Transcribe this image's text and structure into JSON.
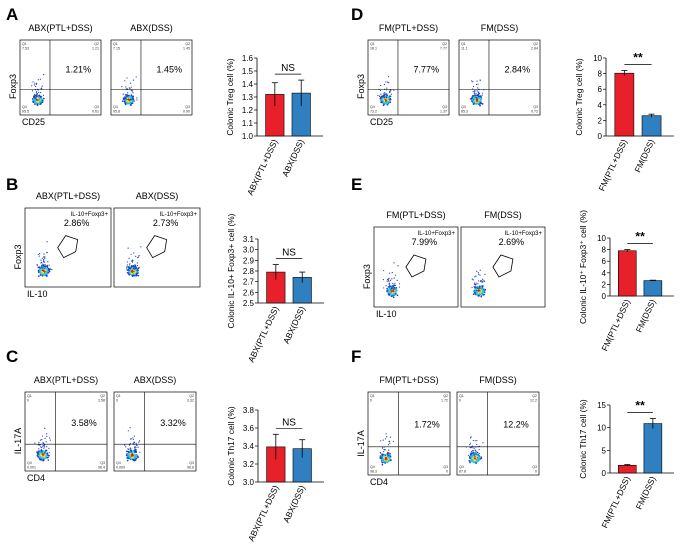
{
  "panels": [
    {
      "letter": "A",
      "labels": [
        "ABX(PTL+DSS)",
        "ABX(DSS)"
      ],
      "x_axis": "CD25",
      "y_axis": "Foxp3",
      "gate": "quad",
      "percentages": [
        "1.21%",
        "1.45%"
      ],
      "quadrants": [
        [
          "Q1",
          "Q2",
          "Q4",
          "Q3"
        ],
        [
          "Q1",
          "Q2",
          "Q4",
          "Q3"
        ]
      ],
      "quadrant_values": [
        [
          "7.53",
          "1.21",
          "95.5",
          "0.61"
        ],
        [
          "7.15",
          "1.45",
          "95.8",
          "0.90"
        ]
      ],
      "sig_label": "NS"
    },
    {
      "letter": "B",
      "labels": [
        "ABX(PTL+DSS)",
        "ABX(DSS)"
      ],
      "x_axis": "IL-10",
      "y_axis": "Foxp3",
      "gate": "polygon",
      "gate_label": "IL-10+Foxp3+",
      "percentages": [
        "2.86%",
        "2.73%"
      ],
      "sig_label": "NS"
    },
    {
      "letter": "C",
      "labels": [
        "ABX(PTL+DSS)",
        "ABX(DSS)"
      ],
      "x_axis": "CD4",
      "y_axis": "IL-17A",
      "gate": "quad",
      "percentages": [
        "3.58%",
        "3.32%"
      ],
      "quadrants": [
        [
          "Q1",
          "Q2",
          "Q4",
          "Q3"
        ],
        [
          "Q1",
          "Q2",
          "Q4",
          "Q3"
        ]
      ],
      "quadrant_values": [
        [
          "0",
          "3.58",
          "0.001",
          "96.4"
        ],
        [
          "0",
          "3.32",
          "0.009",
          "96.6"
        ]
      ],
      "sig_label": "NS"
    },
    {
      "letter": "D",
      "labels": [
        "FM(PTL+DSS)",
        "FM(DSS)"
      ],
      "x_axis": "CD25",
      "y_axis": "Foxp3",
      "gate": "quad",
      "percentages": [
        "7.77%",
        "2.84%"
      ],
      "quadrants": [
        [
          "Q1",
          "Q2",
          "Q4",
          "Q3"
        ],
        [
          "Q1",
          "Q2",
          "Q4",
          "Q3"
        ]
      ],
      "quadrant_values": [
        [
          "18.1",
          "7.77",
          "73.2",
          "1.37"
        ],
        [
          "11.1",
          "2.84",
          "85.3",
          "0.72"
        ]
      ],
      "sig_label": "**"
    },
    {
      "letter": "E",
      "labels": [
        "FM(PTL+DSS)",
        "FM(DSS)"
      ],
      "x_axis": "IL-10",
      "y_axis": "Foxp3",
      "gate": "polygon",
      "gate_label": "IL-10+Foxp3+",
      "percentages": [
        "7.99%",
        "2.69%"
      ],
      "sig_label": "**"
    },
    {
      "letter": "F",
      "labels": [
        "FM(PTL+DSS)",
        "FM(DSS)"
      ],
      "x_axis": "CD4",
      "y_axis": "IL-17A",
      "gate": "quad",
      "percentages": [
        "1.72%",
        "12.2%"
      ],
      "quadrants": [
        [
          "Q1",
          "Q2",
          "Q4",
          "Q3"
        ],
        [
          "Q1",
          "Q2",
          "Q4",
          "Q3"
        ]
      ],
      "quadrant_values": [
        [
          "0",
          "1.72",
          "98.3",
          "0"
        ],
        [
          "0",
          "12.2",
          "87.8",
          "0"
        ]
      ],
      "sig_label": "**"
    }
  ],
  "colors": {
    "bar_red": "#e8202a",
    "bar_blue": "#2f7fc1",
    "dot_blue": "#1f3fbf",
    "dot_cyan": "#22c8e6",
    "dot_yellow": "#f2e22e",
    "dot_red": "#e0301e"
  },
  "chart_data": [
    {
      "panel": "A",
      "type": "bar",
      "title": "",
      "categories": [
        "ABX(PTL+DSS)",
        "ABX(DSS)"
      ],
      "values": [
        1.32,
        1.33
      ],
      "errors": [
        0.09,
        0.1
      ],
      "ylabel": "Colonic Treg cell (%)",
      "xlabel": "",
      "ylim": [
        1.0,
        1.6
      ],
      "yticks": [
        "1.0",
        "1.1",
        "1.2",
        "1.3",
        "1.4",
        "1.5",
        "1.6"
      ],
      "significance": "NS"
    },
    {
      "panel": "B",
      "type": "bar",
      "title": "",
      "categories": [
        "ABX(PTL+DSS)",
        "ABX(DSS)"
      ],
      "values": [
        2.79,
        2.74
      ],
      "errors": [
        0.07,
        0.05
      ],
      "ylabel": "Colonic IL-10+ Foxp3+ cell (%)",
      "xlabel": "",
      "ylim": [
        2.5,
        3.1
      ],
      "yticks": [
        "2.5",
        "2.6",
        "2.7",
        "2.8",
        "2.9",
        "3.0",
        "3.1"
      ],
      "significance": "NS"
    },
    {
      "panel": "C",
      "type": "bar",
      "title": "",
      "categories": [
        "ABX(PTL+DSS)",
        "ABX(DSS)"
      ],
      "values": [
        3.39,
        3.37
      ],
      "errors": [
        0.14,
        0.1
      ],
      "ylabel": "Colonic Th17 cell (%)",
      "xlabel": "",
      "ylim": [
        3.0,
        3.8
      ],
      "yticks": [
        "3.0",
        "3.2",
        "3.4",
        "3.6",
        "3.8"
      ],
      "significance": "NS"
    },
    {
      "panel": "D",
      "type": "bar",
      "title": "",
      "categories": [
        "FM(PTL+DSS)",
        "FM(DSS)"
      ],
      "values": [
        8.05,
        2.6
      ],
      "errors": [
        0.35,
        0.2
      ],
      "ylabel": "Colonic Treg cell (%)",
      "xlabel": "",
      "ylim": [
        0,
        10
      ],
      "yticks": [
        "0",
        "2",
        "4",
        "6",
        "8",
        "10"
      ],
      "significance": "**"
    },
    {
      "panel": "E",
      "type": "bar",
      "title": "",
      "categories": [
        "FM(PTL+DSS)",
        "FM(DSS)"
      ],
      "values": [
        7.8,
        2.65
      ],
      "errors": [
        0.2,
        0.08
      ],
      "ylabel": "Colonic IL-10⁺ Foxp3⁺ cell (%)",
      "xlabel": "",
      "ylim": [
        0,
        10
      ],
      "yticks": [
        "0",
        "2",
        "4",
        "6",
        "8",
        "10"
      ],
      "significance": "**"
    },
    {
      "panel": "F",
      "type": "bar",
      "title": "",
      "categories": [
        "FM(PTL+DSS)",
        "FM(DSS)"
      ],
      "values": [
        1.7,
        10.9
      ],
      "errors": [
        0.15,
        1.1
      ],
      "ylabel": "Colonic Th17 cell (%)",
      "xlabel": "",
      "ylim": [
        0,
        15
      ],
      "yticks": [
        "0",
        "5",
        "10",
        "15"
      ],
      "significance": "**"
    }
  ]
}
